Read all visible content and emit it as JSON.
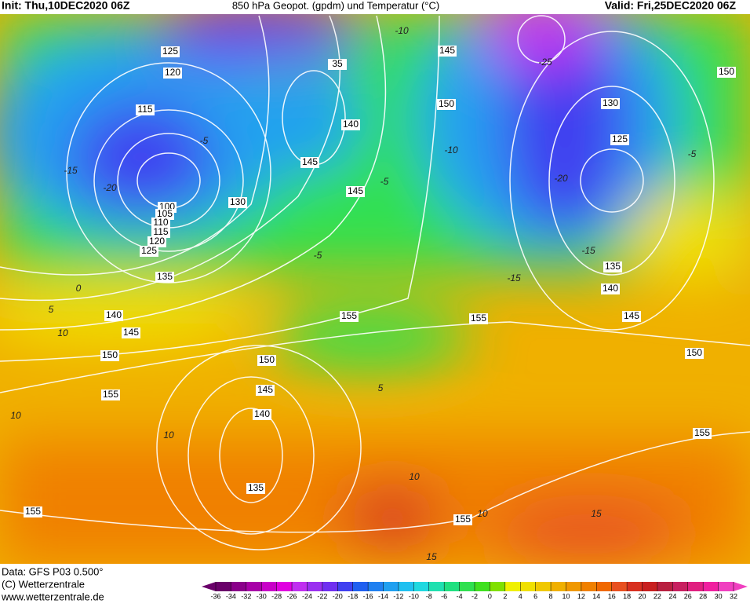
{
  "header": {
    "init": "Init: Thu,10DEC2020 06Z",
    "title": "850 hPa Geopot. (gpdm) und Temperatur (°C)",
    "valid": "Valid: Fri,25DEC2020 06Z"
  },
  "footer": {
    "data": "Data: GFS P03 0.500°",
    "copyright": "(C) Wetterzentrale",
    "url": "www.wetterzentrale.de"
  },
  "colorbar": {
    "ticks": [
      -36,
      -34,
      -32,
      -30,
      -28,
      -26,
      -24,
      -22,
      -20,
      -18,
      -16,
      -14,
      -12,
      -10,
      -8,
      -6,
      -4,
      -2,
      0,
      2,
      4,
      6,
      8,
      10,
      12,
      14,
      16,
      18,
      20,
      22,
      24,
      26,
      28,
      30,
      32
    ],
    "colors": [
      "#6a006a",
      "#8a008a",
      "#a800a8",
      "#c800c8",
      "#e000e0",
      "#c030f0",
      "#9a30f0",
      "#7030f0",
      "#4040f0",
      "#2060f0",
      "#2080f0",
      "#20a0f0",
      "#20c0f0",
      "#20d8e0",
      "#20e0b0",
      "#20e080",
      "#30e050",
      "#40e020",
      "#80e000",
      "#f0f000",
      "#f0e000",
      "#f0c800",
      "#f0b000",
      "#f09800",
      "#f08000",
      "#f06800",
      "#e85020",
      "#d83020",
      "#c82020",
      "#b82040",
      "#c82060",
      "#e02080",
      "#f020a0",
      "#f040c0"
    ]
  },
  "geopotential_labels": [
    "125",
    "120",
    "115",
    "100",
    "105",
    "110",
    "115",
    "120",
    "125",
    "130",
    "135",
    "140",
    "145",
    "150",
    "155",
    "150",
    "145",
    "140",
    "135",
    "155",
    "35",
    "140",
    "145",
    "145",
    "145",
    "150",
    "155",
    "155",
    "130",
    "125",
    "135",
    "140",
    "145",
    "150",
    "155",
    "155",
    "150"
  ],
  "temperature_labels": [
    "-10",
    "-5",
    "-20",
    "-15",
    "-5",
    "0",
    "5",
    "10",
    "10",
    "10",
    "-5",
    "-10",
    "-15",
    "-20",
    "-25",
    "-15",
    "5",
    "10",
    "15",
    "15",
    "10",
    "-5"
  ]
}
